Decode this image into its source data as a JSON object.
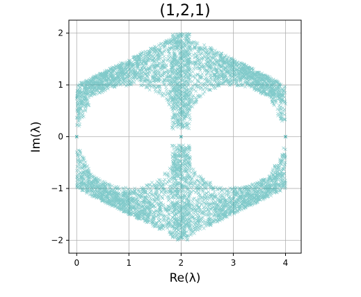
{
  "chart_data": {
    "type": "scatter",
    "title": "(1,2,1)",
    "xlabel": "Re(λ)",
    "ylabel": "Im(λ)",
    "xlim": [
      -0.15,
      4.3
    ],
    "ylim": [
      -2.25,
      2.25
    ],
    "xticks": [
      0,
      1,
      2,
      3,
      4
    ],
    "yticks": [
      -2,
      -1,
      0,
      1,
      2
    ],
    "xtick_labels": [
      "0",
      "1",
      "2",
      "3",
      "4"
    ],
    "ytick_labels": [
      "−2",
      "−1",
      "0",
      "1",
      "2"
    ],
    "grid": true,
    "marker": "x",
    "color": "#1a9f9f",
    "series": [
      {
        "points_description_free": true,
        "hull_vertices": [
          [
            0,
            1
          ],
          [
            2,
            2
          ],
          [
            4,
            1
          ],
          [
            4,
            -1
          ],
          [
            2,
            -2
          ],
          [
            0,
            -1
          ]
        ],
        "upper_inner_edge": [
          [
            0.05,
            0.2
          ],
          [
            0.3,
            0.75
          ],
          [
            0.7,
            0.95
          ],
          [
            1.2,
            1.0
          ],
          [
            1.6,
            0.8
          ],
          [
            1.85,
            0.45
          ],
          [
            2.0,
            0.05
          ],
          [
            2.15,
            0.45
          ],
          [
            2.4,
            0.8
          ],
          [
            2.8,
            1.0
          ],
          [
            3.3,
            0.95
          ],
          [
            3.7,
            0.75
          ],
          [
            3.95,
            0.2
          ]
        ],
        "lower_inner_edge": [
          [
            0.05,
            -0.2
          ],
          [
            0.3,
            -0.75
          ],
          [
            0.7,
            -0.95
          ],
          [
            1.2,
            -1.0
          ],
          [
            1.6,
            -0.8
          ],
          [
            1.85,
            -0.45
          ],
          [
            2.0,
            -0.05
          ],
          [
            2.15,
            -0.45
          ],
          [
            2.4,
            -0.8
          ],
          [
            2.8,
            -1.0
          ],
          [
            3.3,
            -0.95
          ],
          [
            3.7,
            -0.75
          ],
          [
            3.95,
            -0.2
          ]
        ],
        "real_axis_points": [
          [
            0,
            0
          ],
          [
            2,
            0
          ],
          [
            4,
            0
          ]
        ]
      }
    ]
  }
}
